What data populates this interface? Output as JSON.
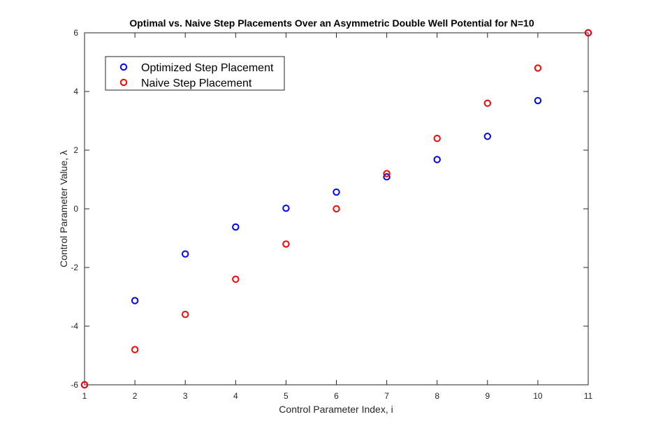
{
  "chart_data": {
    "type": "scatter",
    "title": "Optimal vs. Naive Step Placements Over an Asymmetric Double Well Potential for N=10",
    "xlabel": "Control Parameter Index, i",
    "ylabel": "Control Parameter Value, λ",
    "xlim": [
      1,
      11
    ],
    "ylim": [
      -6,
      6
    ],
    "xticks": [
      1,
      2,
      3,
      4,
      5,
      6,
      7,
      8,
      9,
      10,
      11
    ],
    "yticks": [
      -6,
      -4,
      -2,
      0,
      2,
      4,
      6
    ],
    "grid": false,
    "legend_position": "top-left",
    "series": [
      {
        "name": "Optimized Step Placement",
        "color": "#0000ff",
        "marker": "circle-open",
        "x": [
          1,
          2,
          3,
          4,
          5,
          6,
          7,
          8,
          9,
          10,
          11
        ],
        "y": [
          -6,
          -3.13,
          -1.54,
          -0.62,
          0.02,
          0.57,
          1.09,
          1.68,
          2.47,
          3.69,
          6
        ]
      },
      {
        "name": "Naive Step Placement",
        "color": "#ff0000",
        "marker": "circle-open",
        "x": [
          1,
          2,
          3,
          4,
          5,
          6,
          7,
          8,
          9,
          10,
          11
        ],
        "y": [
          -6,
          -4.8,
          -3.6,
          -2.4,
          -1.2,
          0,
          1.2,
          2.4,
          3.6,
          4.8,
          6
        ]
      }
    ]
  }
}
